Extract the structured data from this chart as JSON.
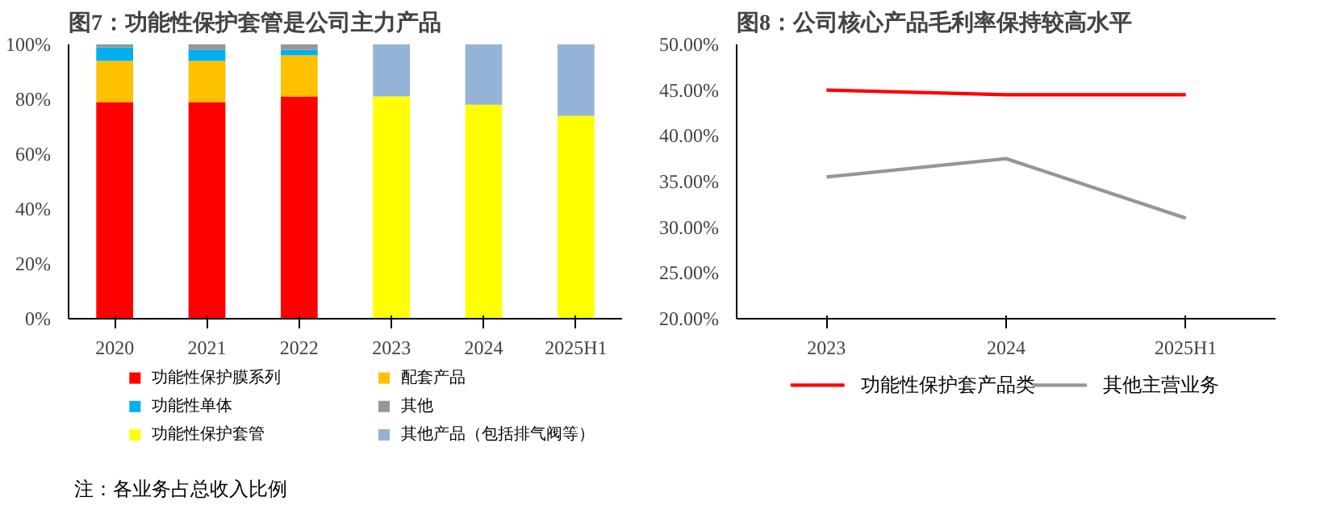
{
  "chart_data": [
    {
      "type": "bar",
      "title": "图7：功能性保护套管是公司主力产品",
      "stacked": true,
      "categories": [
        "2020",
        "2021",
        "2022",
        "2023",
        "2024",
        "2025H1"
      ],
      "series": [
        {
          "name": "功能性保护膜系列",
          "color": "#ff0000",
          "values": [
            79,
            79,
            81,
            null,
            null,
            null
          ]
        },
        {
          "name": "配套产品",
          "color": "#ffc000",
          "values": [
            15,
            15,
            15,
            null,
            null,
            null
          ]
        },
        {
          "name": "功能性单体",
          "color": "#00b0f0",
          "values": [
            5,
            4,
            2,
            null,
            null,
            null
          ]
        },
        {
          "name": "其他",
          "color": "#969696",
          "values": [
            1,
            2,
            2,
            null,
            null,
            null
          ]
        },
        {
          "name": "功能性保护套管",
          "color": "#ffff00",
          "values": [
            null,
            null,
            null,
            81,
            78,
            74
          ]
        },
        {
          "name": "其他产品（包括排气阀等）",
          "color": "#95b3d7",
          "values": [
            null,
            null,
            null,
            19,
            22,
            26
          ]
        }
      ],
      "ylim": [
        0,
        100
      ],
      "yticks": [
        {
          "value": 0,
          "label": "0%"
        },
        {
          "value": 20,
          "label": "20%"
        },
        {
          "value": 40,
          "label": "40%"
        },
        {
          "value": 60,
          "label": "60%"
        },
        {
          "value": 80,
          "label": "80%"
        },
        {
          "value": 100,
          "label": "100%"
        }
      ],
      "legend": "bottom",
      "annotations": [
        "注：各业务占总收入比例"
      ]
    },
    {
      "type": "line",
      "title": "图8：公司核心产品毛利率保持较高水平",
      "categories": [
        "2023",
        "2024",
        "2025H1"
      ],
      "series": [
        {
          "name": "功能性保护套产品类",
          "color": "#ff0000",
          "values": [
            45,
            44.5,
            44.5
          ]
        },
        {
          "name": "其他主营业务",
          "color": "#969696",
          "values": [
            35.5,
            37.5,
            31
          ]
        }
      ],
      "ylim": [
        20,
        50
      ],
      "yticks": [
        {
          "value": 20,
          "label": "20.00%"
        },
        {
          "value": 25,
          "label": "25.00%"
        },
        {
          "value": 30,
          "label": "30.00%"
        },
        {
          "value": 35,
          "label": "35.00%"
        },
        {
          "value": 40,
          "label": "40.00%"
        },
        {
          "value": 45,
          "label": "45.00%"
        },
        {
          "value": 50,
          "label": "50.00%"
        }
      ],
      "legend": "bottom"
    }
  ]
}
